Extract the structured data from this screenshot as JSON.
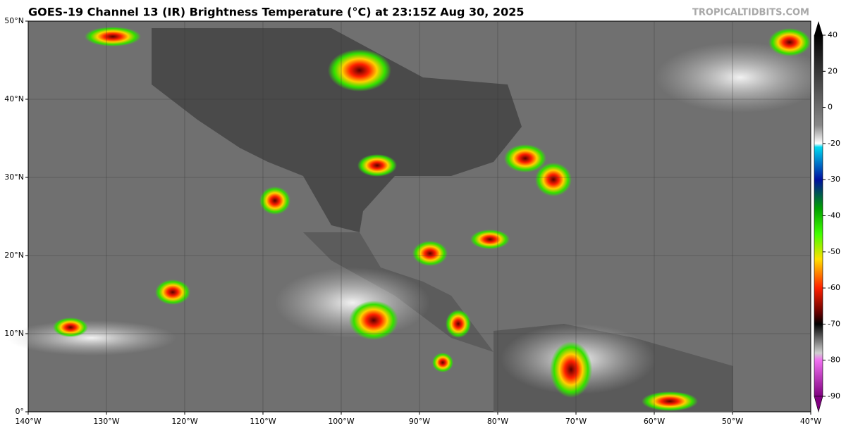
{
  "title": "GOES-19 Channel 13 (IR) Brightness Temperature (°C) at 23:15Z Aug 30, 2025",
  "credit": "TROPICALTIDBITS.COM",
  "map": {
    "lat_labels": [
      "0°",
      "10°N",
      "20°N",
      "30°N",
      "40°N",
      "50°N"
    ],
    "lon_labels": [
      "140°W",
      "130°W",
      "120°W",
      "110°W",
      "100°W",
      "90°W",
      "80°W",
      "70°W",
      "60°W",
      "50°W",
      "40°W"
    ]
  },
  "colorbar": {
    "ticks": [
      40,
      20,
      0,
      -20,
      -30,
      -40,
      -50,
      -60,
      -70,
      -80,
      -90
    ]
  }
}
